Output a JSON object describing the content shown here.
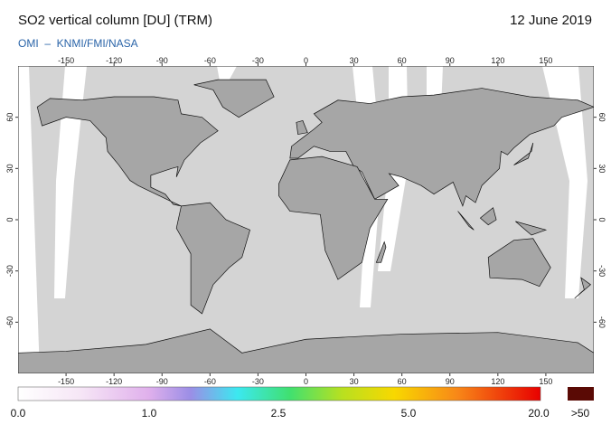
{
  "header": {
    "title": "SO2 vertical column [DU] (TRM)",
    "date": "12 June 2019",
    "credit": "OMI  –  KNMI/FMI/NASA"
  },
  "map": {
    "lon_ticks": [
      -150,
      -120,
      -90,
      -60,
      -30,
      0,
      30,
      60,
      90,
      120,
      150
    ],
    "lat_ticks": [
      60,
      30,
      0,
      -30,
      -60
    ]
  },
  "colorbar": {
    "labels": [
      "0.0",
      "1.0",
      "2.5",
      "5.0",
      "20.0"
    ],
    "overflow_label": ">50"
  }
}
